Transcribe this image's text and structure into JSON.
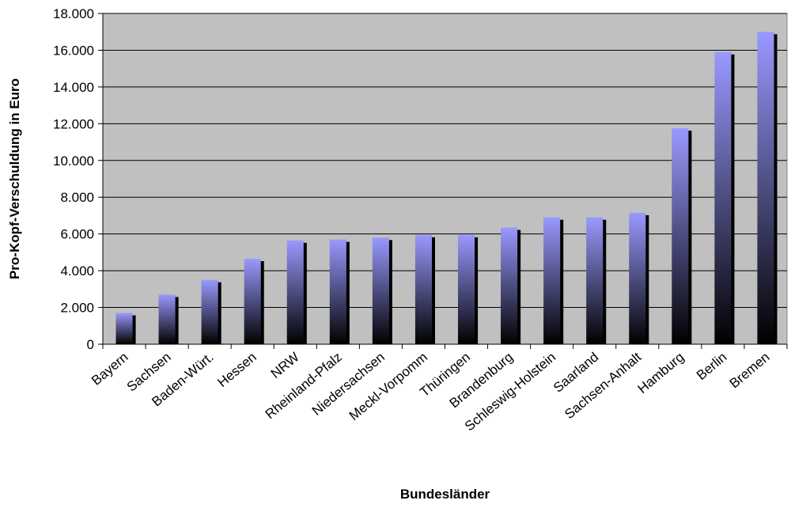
{
  "chart_data": {
    "type": "bar",
    "xlabel": "Bundesländer",
    "ylabel": "Pro-Kopf-Verschuldung in Euro",
    "ylim": [
      0,
      18000
    ],
    "ytick_values": [
      0,
      2000,
      4000,
      6000,
      8000,
      10000,
      12000,
      14000,
      16000,
      18000
    ],
    "ytick_labels": [
      "0",
      "2.000",
      "4.000",
      "6.000",
      "8.000",
      "10.000",
      "12.000",
      "14.000",
      "16.000",
      "18.000"
    ],
    "grid": true,
    "legend": "none",
    "categories": [
      "Bayern",
      "Sachsen",
      "Baden-Würt.",
      "Hessen",
      "NRW",
      "Rheinland-Pfalz",
      "Niedersachsen",
      "Meckl-Vorpomm",
      "Thüringen",
      "Brandenburg",
      "Schleswig-Holstein",
      "Saarland",
      "Sachsen-Anhalt",
      "Hamburg",
      "Berlin",
      "Bremen"
    ],
    "values": [
      1700,
      2700,
      3500,
      4650,
      5650,
      5700,
      5800,
      5950,
      5950,
      6350,
      6900,
      6900,
      7150,
      11750,
      15900,
      17000
    ]
  },
  "colors": {
    "plot_background": "#c0c0c0",
    "bar_top": "#9999ff",
    "bar_bottom": "#000000",
    "shadow": "#000000",
    "grid": "#000000"
  }
}
